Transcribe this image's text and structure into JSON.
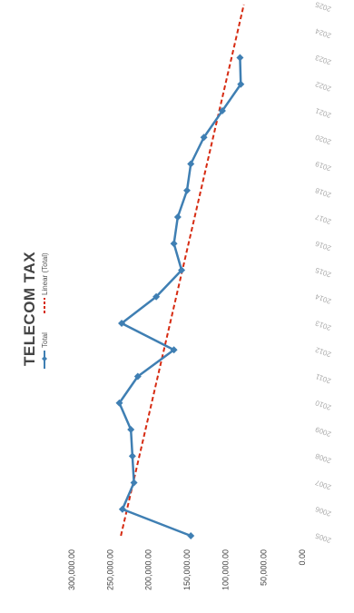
{
  "chart_data": {
    "type": "line",
    "title": "TELECOM TAX",
    "orientation": "rotated-90-ccw",
    "legend_position": "top",
    "categories": [
      "2005",
      "2006",
      "2007",
      "2008",
      "2009",
      "2010",
      "2011",
      "2012",
      "2013",
      "2014",
      "2015",
      "2016",
      "2017",
      "2018",
      "2019",
      "2020",
      "2021",
      "2022",
      "2023",
      "2024",
      "2025"
    ],
    "series": [
      {
        "name": "Total",
        "color": "#3f7fb3",
        "values": [
          145000,
          234000,
          219000,
          221000,
          223000,
          238000,
          214000,
          167000,
          235000,
          190000,
          157000,
          167000,
          162000,
          150000,
          145000,
          128000,
          104000,
          80000,
          81000,
          null,
          null
        ]
      },
      {
        "name": "Linear (Total)",
        "color": "#d62b12",
        "style": "dashed",
        "values": [
          236000,
          228000,
          220000,
          212000,
          204000,
          196000,
          188000,
          180000,
          172000,
          164000,
          156000,
          148000,
          140000,
          132000,
          124000,
          116000,
          108000,
          100000,
          92000,
          84000,
          76000
        ]
      }
    ],
    "y_ticks": [
      "0.00",
      "50,000.00",
      "100,000.00",
      "150,000.00",
      "200,000.00",
      "250,000.00",
      "300,000.00"
    ],
    "ylim": [
      0,
      300000
    ],
    "grid": false
  }
}
